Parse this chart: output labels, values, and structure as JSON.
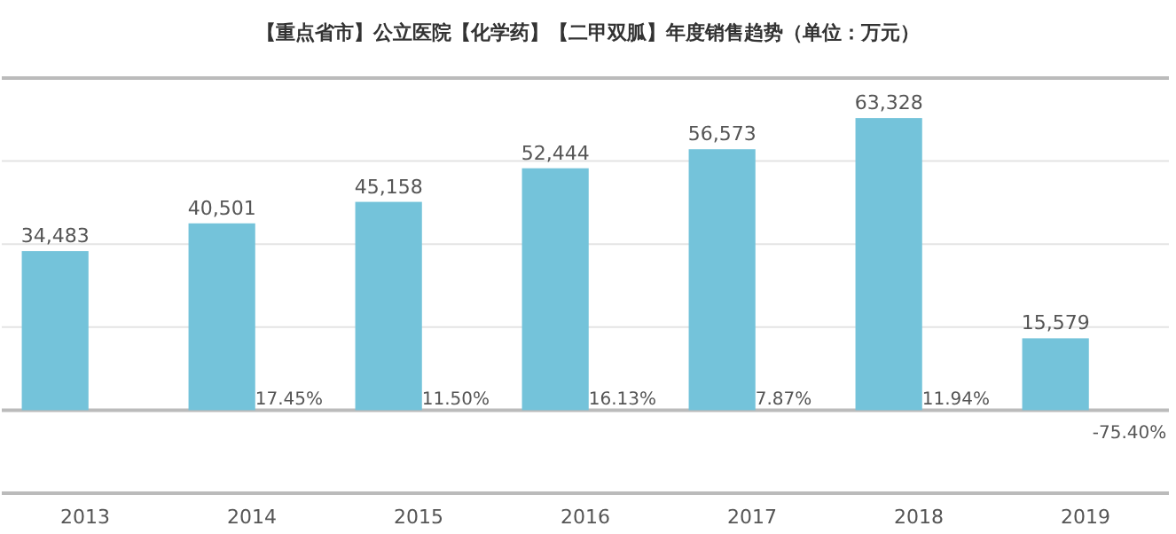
{
  "chart_data": {
    "type": "bar",
    "title": "【重点省市】公立医院【化学药】【二甲双胍】年度销售趋势（单位：万元）",
    "categories": [
      "2013",
      "2014",
      "2015",
      "2016",
      "2017",
      "2018",
      "2019"
    ],
    "series": [
      {
        "color": "#74c3da",
        "values": [
          34483,
          40501,
          45158,
          52444,
          56573,
          63328,
          15579
        ],
        "value_labels": [
          "34,483",
          "40,501",
          "45,158",
          "52,444",
          "56,573",
          "63,328",
          "15,579"
        ]
      }
    ],
    "annotations": [
      {
        "text": "17.45%",
        "x": "2014",
        "y": 0
      },
      {
        "text": "11.50%",
        "x": "2015",
        "y": 0
      },
      {
        "text": "16.13%",
        "x": "2016",
        "y": 0
      },
      {
        "text": "7.87%",
        "x": "2017",
        "y": 0
      },
      {
        "text": "11.94%",
        "x": "2018",
        "y": 0
      },
      {
        "text": "-75.40%",
        "x": "2019",
        "y": 0
      }
    ],
    "ylim": [
      -18000,
      72000
    ],
    "yticks": [
      {
        "value": -18000,
        "label": null
      },
      {
        "value": 0,
        "label": null
      },
      {
        "value": 18000,
        "label": null
      },
      {
        "value": 36000,
        "label": null
      },
      {
        "value": 54000,
        "label": null
      },
      {
        "value": 72000,
        "label": null
      }
    ],
    "tick_labels": "x",
    "grid": "y"
  }
}
